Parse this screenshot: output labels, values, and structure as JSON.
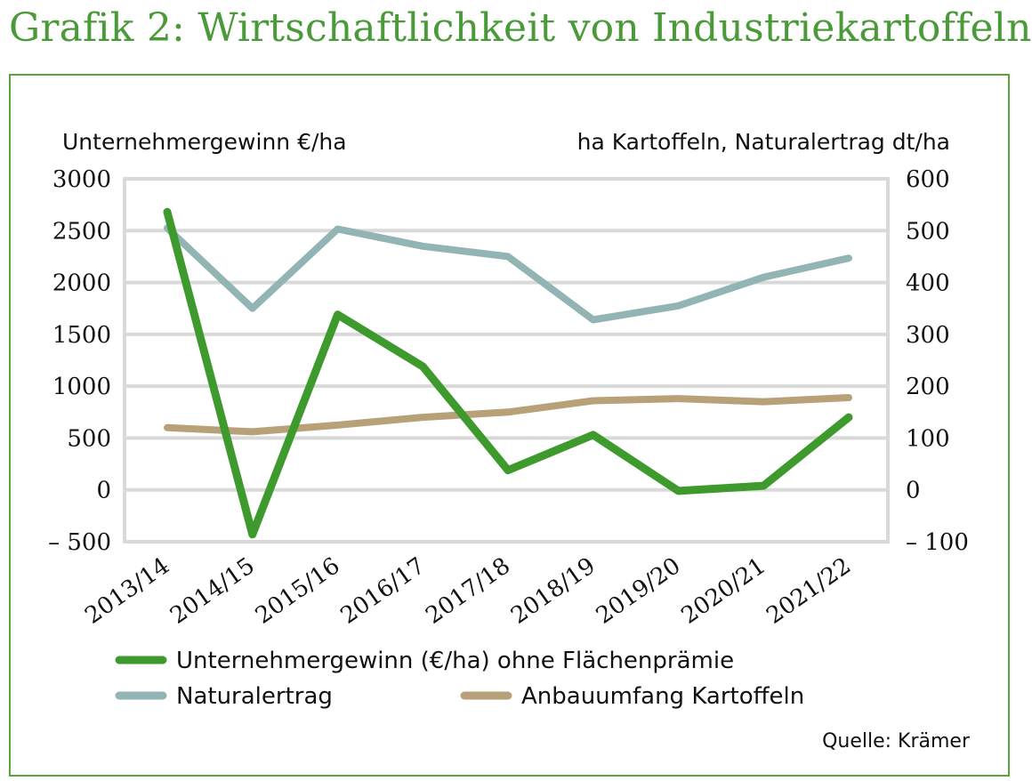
{
  "title": "Grafik 2: Wirtschaftlichkeit von Industriekartoffeln",
  "colors": {
    "title": "#4a9a3a",
    "frame": "#5aa33f",
    "gewinn": "#3f9a2e",
    "ertrag": "#93b4b4",
    "anbau": "#b8a179",
    "grid": "#d9d9d9"
  },
  "chart_data": {
    "type": "line",
    "categories": [
      "2013/14",
      "2014/15",
      "2015/16",
      "2016/17",
      "2017/18",
      "2018/19",
      "2019/20",
      "2020/21",
      "2021/22"
    ],
    "ylabel_left": "Unternehmergewinn €/ha",
    "ylabel_right": "ha Kartoffeln, Naturalertrag dt/ha",
    "ylim_left": [
      -500,
      3000
    ],
    "ylim_right": [
      -100,
      600
    ],
    "yticks_left": [
      "3000",
      "2500",
      "2000",
      "1500",
      "1000",
      "500",
      "0",
      "– 500"
    ],
    "yticks_right": [
      "600",
      "500",
      "400",
      "300",
      "200",
      "100",
      "0",
      "– 100"
    ],
    "grid": true,
    "series": [
      {
        "name": "Unternehmergewinn (€/ha) ohne Flächenprämie",
        "axis": "left",
        "color_key": "gewinn",
        "values": [
          2680,
          -430,
          1690,
          1190,
          190,
          530,
          -10,
          40,
          700
        ]
      },
      {
        "name": "Naturalertrag",
        "axis": "right",
        "color_key": "ertrag",
        "values": [
          505,
          350,
          503,
          470,
          450,
          328,
          355,
          410,
          447
        ]
      },
      {
        "name": "Anbauumfang Kartoffeln",
        "axis": "right",
        "color_key": "anbau",
        "values": [
          120,
          112,
          125,
          140,
          150,
          172,
          176,
          170,
          178
        ]
      }
    ],
    "legend": [
      "Unternehmergewinn (€/ha) ohne Flächenprämie",
      "Naturalertrag",
      "Anbauumfang Kartoffeln"
    ]
  },
  "source": "Quelle: Krämer"
}
